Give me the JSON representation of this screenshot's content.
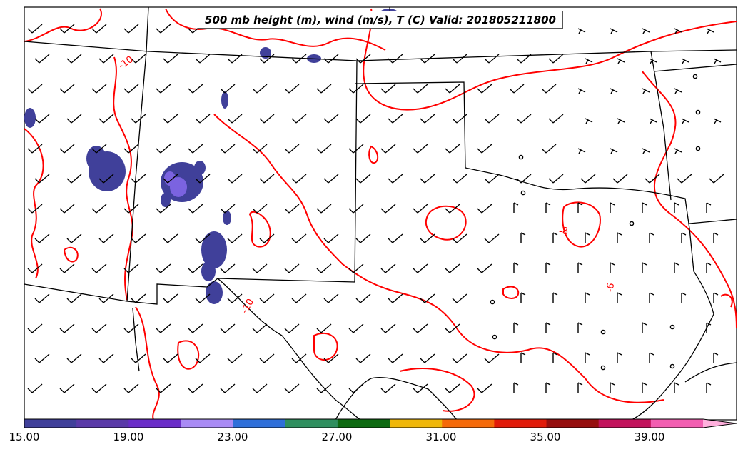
{
  "title": "500 mb height (m), wind (m/s), T (C) Valid: 201805211800",
  "colorbar": {
    "tick_labels": [
      "15.00",
      "19.00",
      "23.00",
      "27.00",
      "31.00",
      "35.00",
      "39.00"
    ],
    "colors": [
      "#40409a",
      "#5a3aa8",
      "#6a2dc8",
      "#a98bf5",
      "#2f6fd9",
      "#2f8f5f",
      "#0e6a12",
      "#efb70a",
      "#f56a0a",
      "#e11b0a",
      "#960f0f",
      "#c2135c",
      "#f25eb1",
      "#ffb0dd"
    ]
  },
  "map_colors": {
    "temperature_contour": "#ff0000",
    "border": "#000000",
    "fill_low": "#40409a",
    "fill_mid": "#7b63e0"
  },
  "contour_labels": [
    "-10",
    "-8",
    "-6",
    "-10"
  ]
}
